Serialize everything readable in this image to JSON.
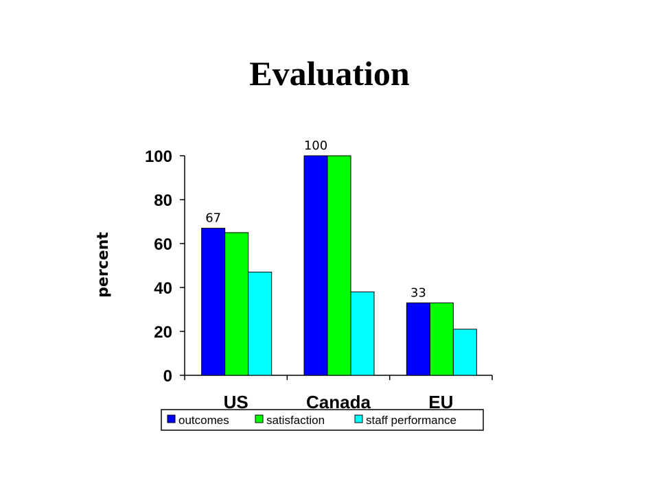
{
  "slide": {
    "title": "Evaluation"
  },
  "chart_data": {
    "type": "bar",
    "title": "Evaluation",
    "xlabel": "",
    "ylabel": "percent",
    "categories": [
      "US",
      "Canada",
      "EU"
    ],
    "series": [
      {
        "name": "outcomes",
        "values": [
          67,
          100,
          33
        ],
        "color": "#0000FF"
      },
      {
        "name": "satisfaction",
        "values": [
          65,
          100,
          33
        ],
        "color": "#00FF00"
      },
      {
        "name": "staff performance",
        "values": [
          47,
          38,
          21
        ],
        "color": "#00FFFF"
      }
    ],
    "data_labels": [
      {
        "series": "outcomes",
        "category": "US",
        "text": "67"
      },
      {
        "series": "outcomes",
        "category": "Canada",
        "text": "100"
      },
      {
        "series": "outcomes",
        "category": "EU",
        "text": "33"
      }
    ],
    "yticks": [
      "0",
      "20",
      "40",
      "60",
      "80",
      "100"
    ],
    "ylim": [
      0,
      100
    ],
    "grid": false,
    "legend": "bottom"
  }
}
